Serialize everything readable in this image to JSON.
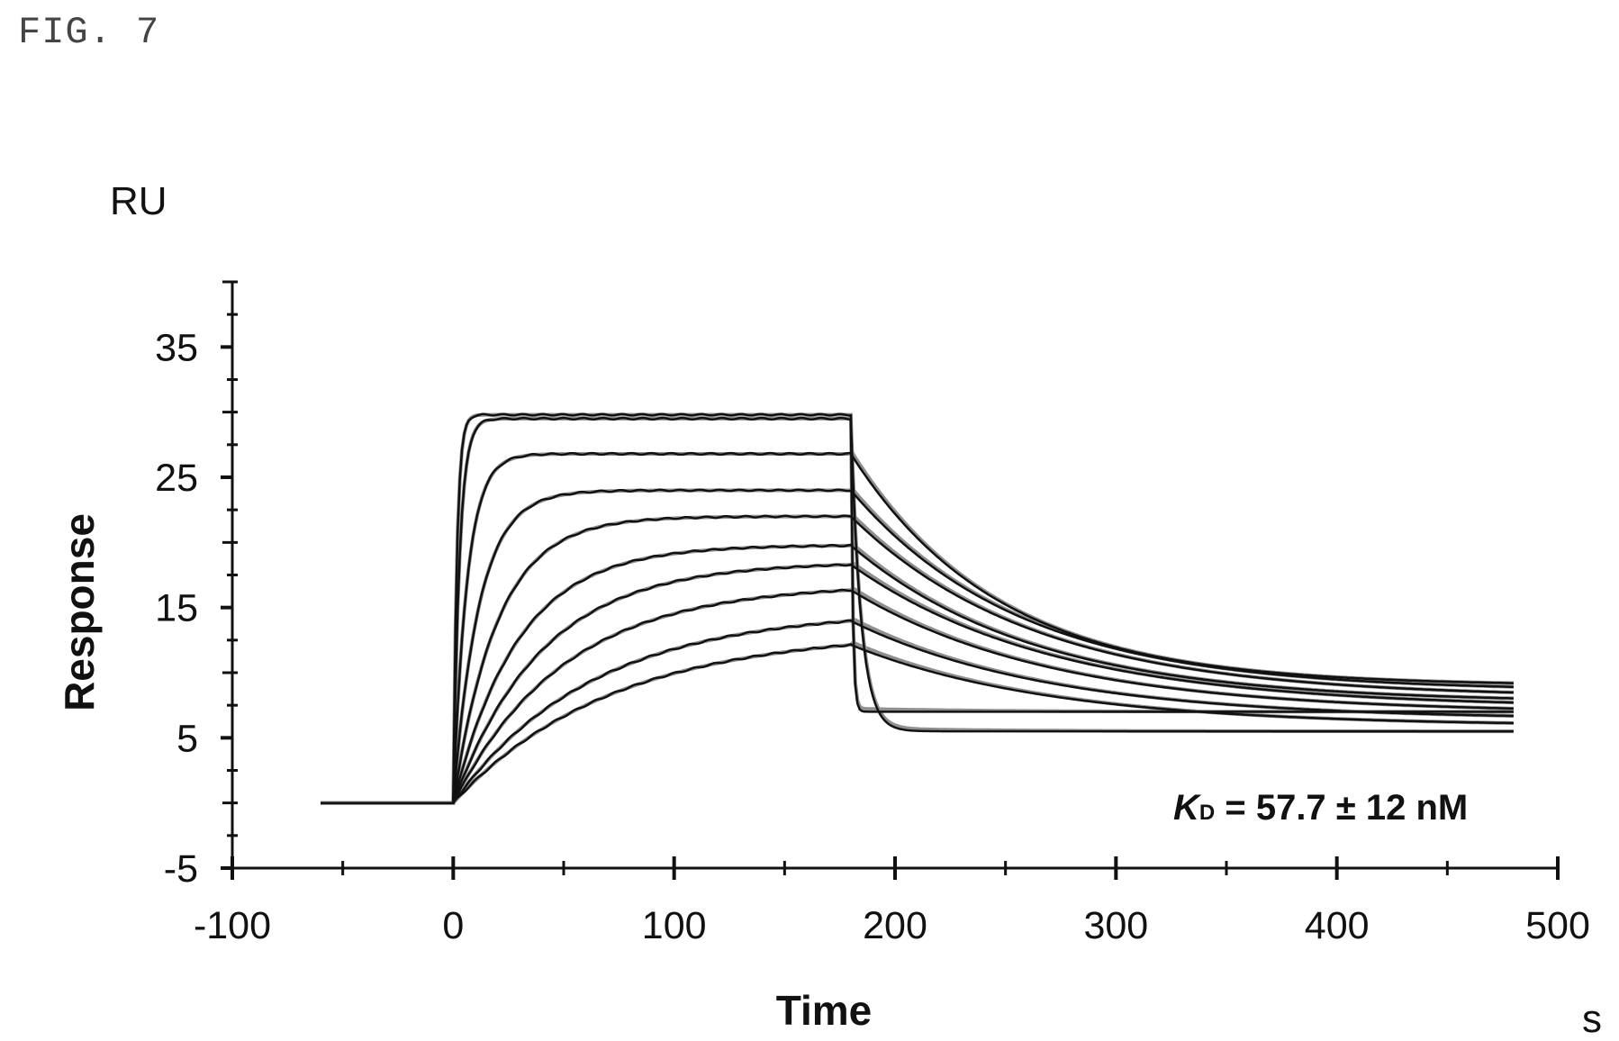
{
  "figure_label": "FIG. 7",
  "chart_data": {
    "type": "line",
    "title": "",
    "xlabel": "Time",
    "xunit": "s",
    "ylabel": "Response",
    "yunit": "RU",
    "xlim": [
      -100,
      500
    ],
    "ylim": [
      -5,
      40
    ],
    "xticks": [
      -100,
      0,
      100,
      200,
      300,
      400,
      500
    ],
    "yticks": [
      -5,
      5,
      15,
      25,
      35
    ],
    "annotation": {
      "kd_symbol": "K",
      "kd_subscript": "D",
      "kd_value": " = 57.7 ± 12 nM"
    },
    "grid": false,
    "legend": "none",
    "series_style": "black measured sensorgrams overlaid with gray fitted curves",
    "injection_start": 0,
    "dissociation_start": 180,
    "x_end": 480,
    "baseline_start": -60,
    "series": [
      {
        "association_plateau": 29.8,
        "association_rate": 0.6,
        "dissociation_residual": 7.0,
        "dissociation_rate": 1.2
      },
      {
        "association_plateau": 29.5,
        "association_rate": 0.35,
        "dissociation_residual": 5.5,
        "dissociation_rate": 0.22
      },
      {
        "association_plateau": 26.8,
        "association_rate": 0.16,
        "dissociation_residual": 9.0,
        "dissociation_rate": 0.015
      },
      {
        "association_plateau": 24.0,
        "association_rate": 0.085,
        "dissociation_residual": 8.6,
        "dissociation_rate": 0.013
      },
      {
        "association_plateau": 22.0,
        "association_rate": 0.05,
        "dissociation_residual": 8.1,
        "dissociation_rate": 0.012
      },
      {
        "association_plateau": 19.8,
        "association_rate": 0.034,
        "dissociation_residual": 7.7,
        "dissociation_rate": 0.012
      },
      {
        "association_plateau": 18.5,
        "association_rate": 0.025,
        "dissociation_residual": 7.3,
        "dissociation_rate": 0.011
      },
      {
        "association_plateau": 16.8,
        "association_rate": 0.02,
        "dissociation_residual": 6.9,
        "dissociation_rate": 0.011
      },
      {
        "association_plateau": 14.8,
        "association_rate": 0.016,
        "dissociation_residual": 6.4,
        "dissociation_rate": 0.011
      },
      {
        "association_plateau": 13.2,
        "association_rate": 0.014,
        "dissociation_residual": 5.9,
        "dissociation_rate": 0.011
      }
    ]
  }
}
